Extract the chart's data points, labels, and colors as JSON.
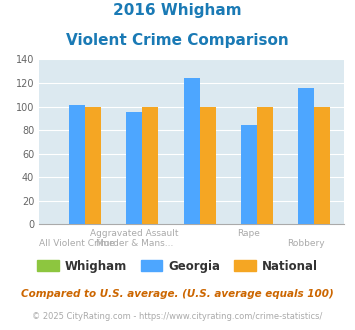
{
  "title_line1": "2016 Whigham",
  "title_line2": "Violent Crime Comparison",
  "whigham": [
    0,
    0,
    0,
    0,
    0
  ],
  "georgia": [
    101,
    95,
    124,
    84,
    116
  ],
  "national": [
    100,
    100,
    100,
    100,
    100
  ],
  "n_groups": 5,
  "top_labels": [
    "",
    "Aggravated Assault",
    "",
    "Rape",
    ""
  ],
  "bot_labels": [
    "All Violent Crime",
    "Murder & Mans...",
    "",
    "",
    "Robbery"
  ],
  "color_whigham": "#8dc63f",
  "color_georgia": "#4da6ff",
  "color_national": "#f5a623",
  "bg_color": "#dce9f0",
  "ylim": [
    0,
    140
  ],
  "yticks": [
    0,
    20,
    40,
    60,
    80,
    100,
    120,
    140
  ],
  "footnote1": "Compared to U.S. average. (U.S. average equals 100)",
  "footnote2": "© 2025 CityRating.com - https://www.cityrating.com/crime-statistics/",
  "legend_labels": [
    "Whigham",
    "Georgia",
    "National"
  ],
  "title_color": "#1a7ab5",
  "label_color": "#aaaaaa",
  "footnote1_color": "#cc6600",
  "footnote2_color": "#aaaaaa"
}
